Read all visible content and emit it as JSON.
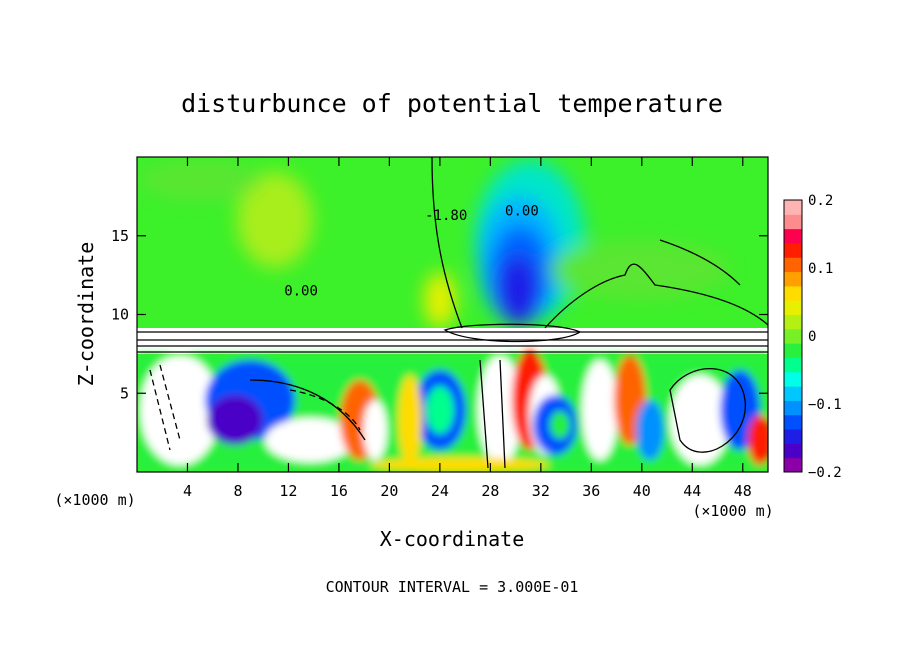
{
  "chart_data": {
    "type": "heatmap",
    "title": "disturbunce of potential temperature",
    "xlabel": "X-coordinate",
    "ylabel": "Z-coordinate",
    "x_unit_label": "(×1000 m)",
    "x_unit_label_right": "(×1000 m)",
    "xlim": [
      0,
      50
    ],
    "ylim": [
      0,
      20
    ],
    "xticks": [
      {
        "value": 4,
        "label": "4"
      },
      {
        "value": 8,
        "label": "8"
      },
      {
        "value": 12,
        "label": "12"
      },
      {
        "value": 16,
        "label": "16"
      },
      {
        "value": 20,
        "label": "20"
      },
      {
        "value": 24,
        "label": "24"
      },
      {
        "value": 28,
        "label": "28"
      },
      {
        "value": 32,
        "label": "32"
      },
      {
        "value": 36,
        "label": "36"
      },
      {
        "value": 40,
        "label": "40"
      },
      {
        "value": 44,
        "label": "44"
      },
      {
        "value": 48,
        "label": "48"
      }
    ],
    "yticks": [
      {
        "value": 5,
        "label": "5"
      },
      {
        "value": 10,
        "label": "10"
      },
      {
        "value": 15,
        "label": "15"
      }
    ],
    "colorbar": {
      "min": -0.2,
      "max": 0.2,
      "ticks": [
        {
          "value": 0.2,
          "label": "0.2"
        },
        {
          "value": 0.1,
          "label": "0.1"
        },
        {
          "value": 0,
          "label": "0"
        },
        {
          "value": -0.1,
          "label": "−0.1"
        },
        {
          "value": -0.2,
          "label": "−0.2"
        }
      ],
      "colors": [
        "#8c00a8",
        "#4b00c8",
        "#1e1ee6",
        "#0050ff",
        "#0090ff",
        "#00c8ff",
        "#00ffe6",
        "#00ff8c",
        "#28f03c",
        "#78f028",
        "#b4f014",
        "#e6f000",
        "#ffdc00",
        "#ffa000",
        "#ff6400",
        "#ff1e00",
        "#ff0050",
        "#ff8c8c",
        "#ffb4b4"
      ]
    },
    "contour_labels": [
      {
        "x": 30.5,
        "z": 16.3,
        "text": "0.00"
      },
      {
        "x": 13.0,
        "z": 11.2,
        "text": "0.00"
      },
      {
        "x": 24.5,
        "z": 16.0,
        "text": "-1.80"
      }
    ],
    "annotation": "CONTOUR INTERVAL = 3.000E-01"
  }
}
